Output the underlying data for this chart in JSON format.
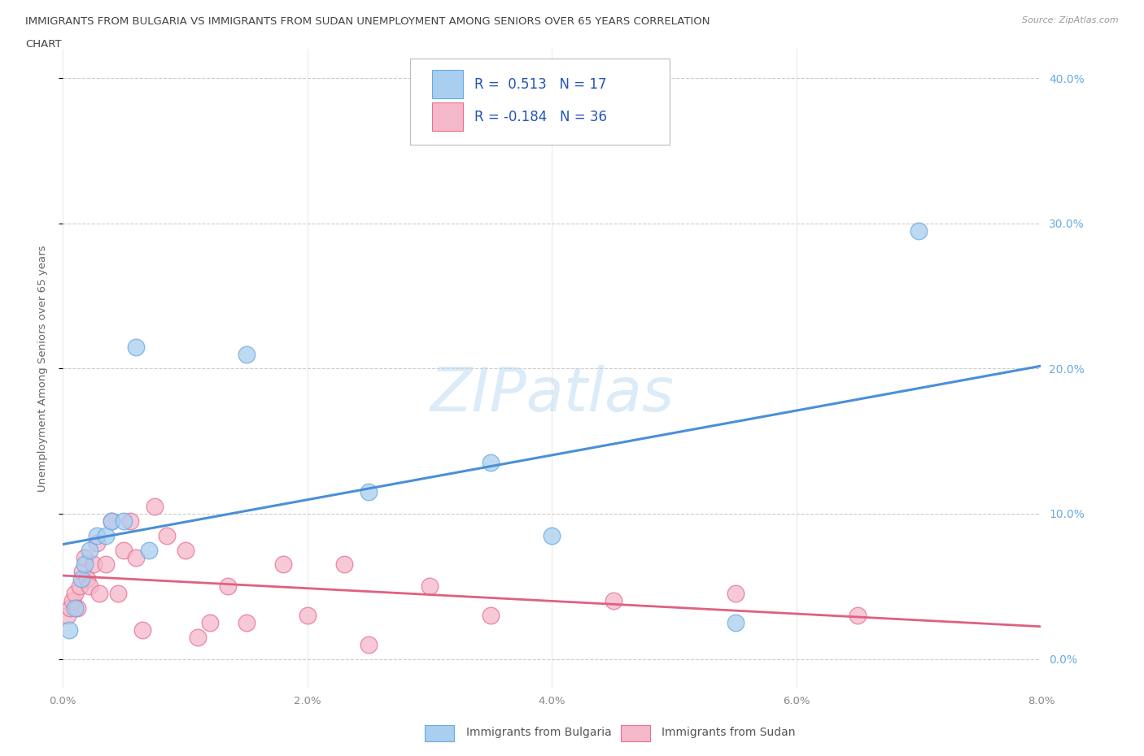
{
  "title_line1": "IMMIGRANTS FROM BULGARIA VS IMMIGRANTS FROM SUDAN UNEMPLOYMENT AMONG SENIORS OVER 65 YEARS CORRELATION",
  "title_line2": "CHART",
  "source": "Source: ZipAtlas.com",
  "ylabel": "Unemployment Among Seniors over 65 years",
  "xlim": [
    0.0,
    8.0
  ],
  "ylim": [
    -2.0,
    42.0
  ],
  "ytick_vals": [
    0.0,
    10.0,
    20.0,
    30.0,
    40.0
  ],
  "xtick_vals": [
    0.0,
    2.0,
    4.0,
    6.0,
    8.0
  ],
  "bg_color": "#ffffff",
  "watermark": "ZIPatlas",
  "bulgaria_color": "#a8cef0",
  "sudan_color": "#f5b8cb",
  "bulgaria_edge": "#6aaae0",
  "sudan_edge": "#e8708a",
  "bulgaria_R": 0.513,
  "bulgaria_N": 17,
  "sudan_R": -0.184,
  "sudan_N": 36,
  "bulgaria_x": [
    0.05,
    0.1,
    0.15,
    0.18,
    0.22,
    0.28,
    0.35,
    0.4,
    0.5,
    0.6,
    0.7,
    1.5,
    2.5,
    3.5,
    4.0,
    5.5,
    7.0
  ],
  "bulgaria_y": [
    2.0,
    3.5,
    5.5,
    6.5,
    7.5,
    8.5,
    8.5,
    9.5,
    9.5,
    21.5,
    7.5,
    21.0,
    11.5,
    13.5,
    8.5,
    2.5,
    29.5
  ],
  "sudan_x": [
    0.04,
    0.06,
    0.08,
    0.1,
    0.12,
    0.14,
    0.16,
    0.18,
    0.2,
    0.22,
    0.25,
    0.28,
    0.3,
    0.35,
    0.4,
    0.45,
    0.5,
    0.55,
    0.6,
    0.65,
    0.75,
    0.85,
    1.0,
    1.1,
    1.2,
    1.35,
    1.5,
    1.8,
    2.0,
    2.3,
    2.5,
    3.0,
    3.5,
    4.5,
    5.5,
    6.5
  ],
  "sudan_y": [
    3.0,
    3.5,
    4.0,
    4.5,
    3.5,
    5.0,
    6.0,
    7.0,
    5.5,
    5.0,
    6.5,
    8.0,
    4.5,
    6.5,
    9.5,
    4.5,
    7.5,
    9.5,
    7.0,
    2.0,
    10.5,
    8.5,
    7.5,
    1.5,
    2.5,
    5.0,
    2.5,
    6.5,
    3.0,
    6.5,
    1.0,
    5.0,
    3.0,
    4.0,
    4.5,
    3.0
  ],
  "trendline_blue_color": "#4a8fd8",
  "trendline_pink_color": "#e06080",
  "legend_label_bulgaria": "Immigrants from Bulgaria",
  "legend_label_sudan": "Immigrants from Sudan",
  "legend_r_color": "#2255bb",
  "legend_n_color": "#2255bb",
  "ytick_color": "#6aaae0",
  "xtick_color": "#888888"
}
